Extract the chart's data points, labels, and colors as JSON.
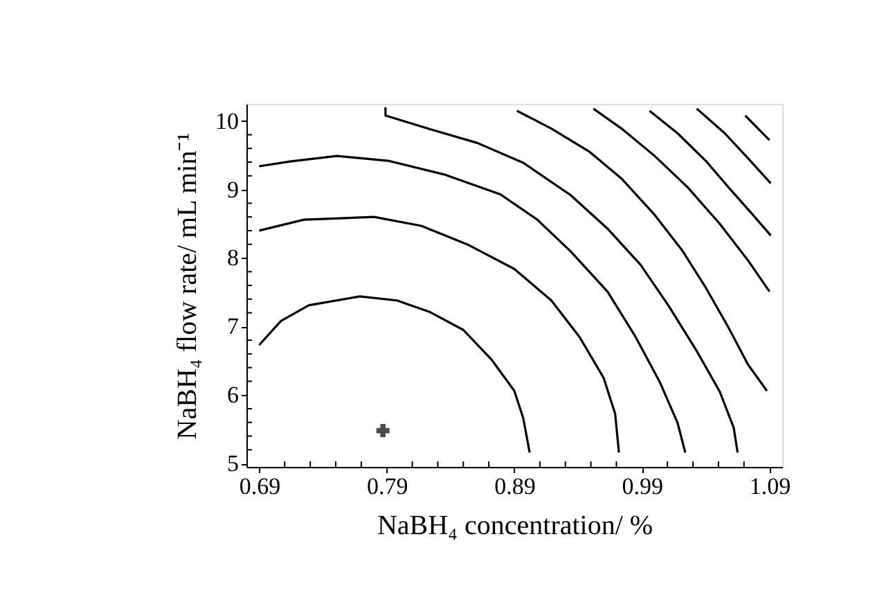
{
  "chart_data": {
    "type": "line",
    "xlabel": "NaBH₄ concentration/ %",
    "ylabel": "NaBH₄ flow rate/ mL min⁻¹",
    "xlim": [
      0.68,
      1.1
    ],
    "ylim": [
      4.95,
      10.25
    ],
    "xticks": [
      0.69,
      {
        "value": 0.71,
        "label": null
      },
      {
        "value": 0.73,
        "label": null
      },
      {
        "value": 0.75,
        "label": null
      },
      {
        "value": 0.77,
        "label": null
      },
      0.79,
      {
        "value": 0.81,
        "label": null
      },
      {
        "value": 0.83,
        "label": null
      },
      {
        "value": 0.85,
        "label": null
      },
      {
        "value": 0.87,
        "label": null
      },
      0.89,
      {
        "value": 0.91,
        "label": null
      },
      {
        "value": 0.93,
        "label": null
      },
      {
        "value": 0.95,
        "label": null
      },
      {
        "value": 0.97,
        "label": null
      },
      0.99,
      {
        "value": 1.01,
        "label": null
      },
      {
        "value": 1.03,
        "label": null
      },
      {
        "value": 1.05,
        "label": null
      },
      {
        "value": 1.07,
        "label": null
      },
      1.09
    ],
    "yticks": [
      5,
      {
        "value": 5.2,
        "label": null
      },
      {
        "value": 5.4,
        "label": null
      },
      {
        "value": 5.6,
        "label": null
      },
      {
        "value": 5.8,
        "label": null
      },
      6,
      {
        "value": 6.2,
        "label": null
      },
      {
        "value": 6.4,
        "label": null
      },
      {
        "value": 6.6,
        "label": null
      },
      {
        "value": 6.8,
        "label": null
      },
      7,
      {
        "value": 7.2,
        "label": null
      },
      {
        "value": 7.4,
        "label": null
      },
      {
        "value": 7.6,
        "label": null
      },
      {
        "value": 7.8,
        "label": null
      },
      8,
      {
        "value": 8.2,
        "label": null
      },
      {
        "value": 8.4,
        "label": null
      },
      {
        "value": 8.6,
        "label": null
      },
      {
        "value": 8.8,
        "label": null
      },
      9,
      {
        "value": 9.2,
        "label": null
      },
      {
        "value": 9.4,
        "label": null
      },
      {
        "value": 9.6,
        "label": null
      },
      {
        "value": 9.8,
        "label": null
      },
      10
    ],
    "grid": false,
    "line_style": "solid",
    "series": [
      {
        "color": "#000000",
        "x": [
          0.69,
          0.707,
          0.729,
          0.769,
          0.798,
          0.824,
          0.85,
          0.872,
          0.89,
          0.897,
          0.902
        ],
        "values": [
          6.73,
          7.08,
          7.31,
          7.44,
          7.38,
          7.21,
          6.95,
          6.52,
          6.06,
          5.66,
          5.16
        ]
      },
      {
        "color": "#000000",
        "x": [
          0.69,
          0.725,
          0.78,
          0.817,
          0.853,
          0.89,
          0.919,
          0.941,
          0.96,
          0.969,
          0.972
        ],
        "values": [
          8.4,
          8.56,
          8.6,
          8.47,
          8.2,
          7.84,
          7.38,
          6.85,
          6.25,
          5.73,
          5.16
        ]
      },
      {
        "color": "#000000",
        "x": [
          0.69,
          0.714,
          0.751,
          0.791,
          0.835,
          0.879,
          0.908,
          0.934,
          0.963,
          0.985,
          1.004,
          1.018,
          1.024
        ],
        "values": [
          9.34,
          9.41,
          9.49,
          9.42,
          9.22,
          8.93,
          8.56,
          8.1,
          7.51,
          6.85,
          6.19,
          5.59,
          5.16
        ]
      },
      {
        "color": "#000000",
        "x": [
          0.789,
          0.789,
          0.824,
          0.861,
          0.897,
          0.934,
          0.963,
          0.989,
          1.011,
          1.033,
          1.051,
          1.062,
          1.065
        ],
        "values": [
          10.2,
          10.08,
          9.88,
          9.68,
          9.39,
          8.92,
          8.43,
          7.9,
          7.3,
          6.64,
          6.05,
          5.52,
          5.16
        ]
      },
      {
        "color": "#000000",
        "x": [
          0.892,
          0.919,
          0.949,
          0.974,
          1.0,
          1.022,
          1.04,
          1.058,
          1.073,
          1.088
        ],
        "values": [
          10.15,
          9.89,
          9.55,
          9.16,
          8.63,
          8.1,
          7.57,
          6.98,
          6.45,
          6.06
        ]
      },
      {
        "color": "#000000",
        "x": [
          0.952,
          0.974,
          1.0,
          1.026,
          1.051,
          1.073,
          1.09
        ],
        "values": [
          10.18,
          9.89,
          9.49,
          9.03,
          8.5,
          7.97,
          7.51
        ]
      },
      {
        "color": "#000000",
        "x": [
          0.996,
          1.018,
          1.04,
          1.058,
          1.077,
          1.091
        ],
        "values": [
          10.15,
          9.82,
          9.42,
          9.03,
          8.63,
          8.33
        ]
      },
      {
        "color": "#000000",
        "x": [
          1.033,
          1.055,
          1.073,
          1.091
        ],
        "values": [
          10.18,
          9.82,
          9.46,
          9.09
        ]
      },
      {
        "color": "#000000",
        "x": [
          1.071,
          1.09
        ],
        "values": [
          10.08,
          9.72
        ]
      },
      {
        "type": "scatter",
        "marker": "cross",
        "color": "#000000",
        "x": [
          0.787
        ],
        "values": [
          5.48
        ]
      }
    ]
  }
}
